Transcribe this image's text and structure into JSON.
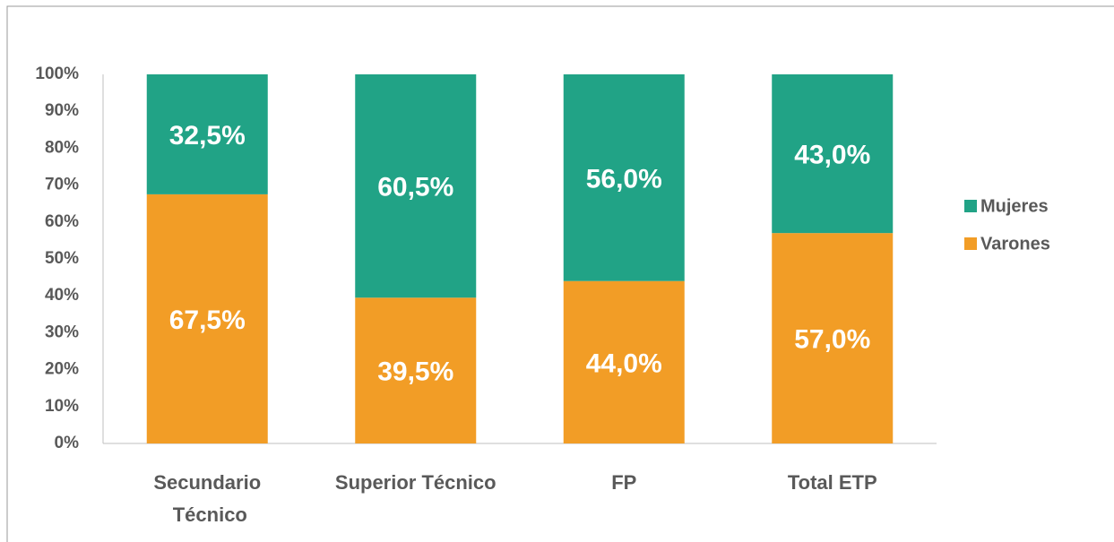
{
  "chart_data": {
    "type": "stacked_bar",
    "categories": [
      "Secundario Técnico",
      "Superior Técnico",
      "FP",
      "Total ETP"
    ],
    "series": [
      {
        "name": "Varones",
        "color": "#f29d26",
        "values": [
          67.5,
          39.5,
          44.0,
          57.0
        ],
        "value_labels": [
          "67,5%",
          "39,5%",
          "44,0%",
          "57,0%"
        ]
      },
      {
        "name": "Mujeres",
        "color": "#21a386",
        "values": [
          32.5,
          60.5,
          56.0,
          43.0
        ],
        "value_labels": [
          "32,5%",
          "60,5%",
          "56,0%",
          "43,0%"
        ]
      }
    ],
    "ylim": [
      0,
      100
    ],
    "yticks": [
      {
        "value": 0,
        "label": "0%"
      },
      {
        "value": 10,
        "label": "10%"
      },
      {
        "value": 20,
        "label": "20%"
      },
      {
        "value": 30,
        "label": "30%"
      },
      {
        "value": 40,
        "label": "40%"
      },
      {
        "value": 50,
        "label": "50%"
      },
      {
        "value": 60,
        "label": "60%"
      },
      {
        "value": 70,
        "label": "70%"
      },
      {
        "value": 80,
        "label": "80%"
      },
      {
        "value": 90,
        "label": "90%"
      },
      {
        "value": 100,
        "label": "100%"
      }
    ],
    "legend": "right"
  }
}
